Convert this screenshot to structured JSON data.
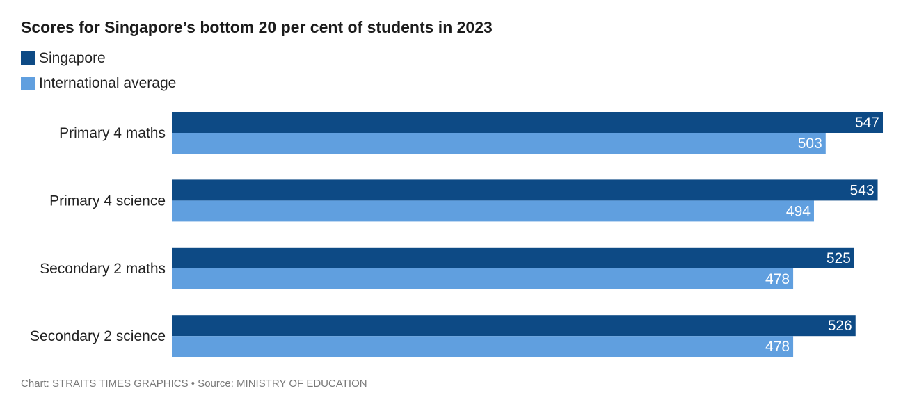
{
  "chart_data": {
    "type": "bar",
    "orientation": "horizontal",
    "title": "Scores for Singapore’s bottom 20 per cent of students in 2023",
    "categories": [
      "Primary 4 maths",
      "Primary 4 science",
      "Secondary 2 maths",
      "Secondary 2 science"
    ],
    "series": [
      {
        "name": "Singapore",
        "color": "#0d4a85",
        "values": [
          547,
          543,
          525,
          526
        ]
      },
      {
        "name": "International average",
        "color": "#609fdf",
        "values": [
          503,
          494,
          478,
          478
        ]
      }
    ],
    "xlim": [
      0,
      547
    ],
    "grid": false,
    "legend_position": "top-left",
    "data_labels": true
  },
  "source_text": "Chart: STRAITS TIMES GRAPHICS • Source: MINISTRY OF EDUCATION"
}
